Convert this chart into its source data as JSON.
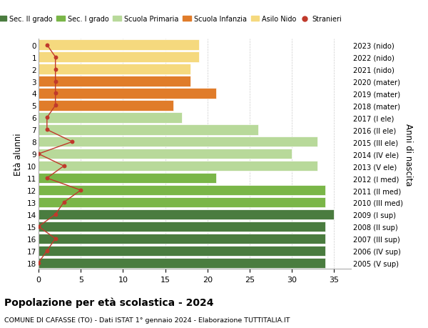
{
  "ages": [
    18,
    17,
    16,
    15,
    14,
    13,
    12,
    11,
    10,
    9,
    8,
    7,
    6,
    5,
    4,
    3,
    2,
    1,
    0
  ],
  "years": [
    "2005 (V sup)",
    "2006 (IV sup)",
    "2007 (III sup)",
    "2008 (II sup)",
    "2009 (I sup)",
    "2010 (III med)",
    "2011 (II med)",
    "2012 (I med)",
    "2013 (V ele)",
    "2014 (IV ele)",
    "2015 (III ele)",
    "2016 (II ele)",
    "2017 (I ele)",
    "2018 (mater)",
    "2019 (mater)",
    "2020 (mater)",
    "2021 (nido)",
    "2022 (nido)",
    "2023 (nido)"
  ],
  "bar_values": [
    34,
    34,
    34,
    34,
    35,
    34,
    34,
    21,
    33,
    30,
    33,
    26,
    17,
    16,
    21,
    18,
    18,
    19,
    19
  ],
  "bar_colors": [
    "#4a7c3f",
    "#4a7c3f",
    "#4a7c3f",
    "#4a7c3f",
    "#4a7c3f",
    "#7ab648",
    "#7ab648",
    "#7ab648",
    "#b8d99a",
    "#b8d99a",
    "#b8d99a",
    "#b8d99a",
    "#b8d99a",
    "#e07c2a",
    "#e07c2a",
    "#e07c2a",
    "#f5d97e",
    "#f5d97e",
    "#f5d97e"
  ],
  "stranieri": [
    0,
    1,
    2,
    0,
    2,
    3,
    5,
    1,
    3,
    0,
    4,
    1,
    1,
    2,
    2,
    2,
    2,
    2,
    1
  ],
  "legend_labels": [
    "Sec. II grado",
    "Sec. I grado",
    "Scuola Primaria",
    "Scuola Infanzia",
    "Asilo Nido",
    "Stranieri"
  ],
  "legend_colors": [
    "#4a7c3f",
    "#7ab648",
    "#b8d99a",
    "#e07c2a",
    "#f5d97e",
    "#c0392b"
  ],
  "ylabel_left": "Età alunni",
  "ylabel_right": "Anni di nascita",
  "title": "Popolazione per età scolastica - 2024",
  "subtitle": "COMUNE DI CAFASSE (TO) - Dati ISTAT 1° gennaio 2024 - Elaborazione TUTTITALIA.IT",
  "xlim": [
    0,
    37
  ],
  "stranieri_color": "#c0392b",
  "bg_color": "#ffffff",
  "bar_edge_color": "#ffffff",
  "grid_color": "#cccccc"
}
